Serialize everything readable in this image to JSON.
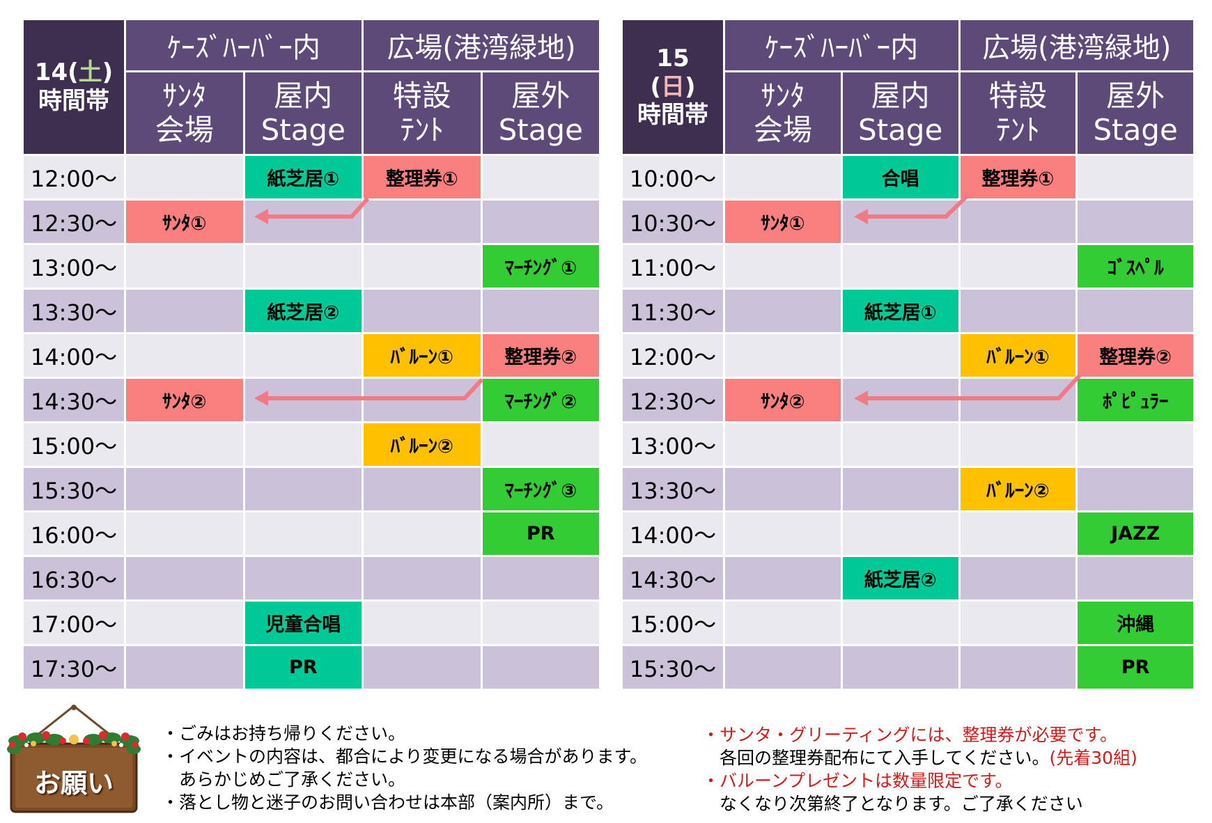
{
  "saturday": {
    "day_num": "14",
    "day_mark": "土",
    "label": "時間帯",
    "group1": "ｹｰｽﾞﾊｰﾊﾞｰ内",
    "group2": "広場(港湾緑地)",
    "columns": [
      "ｻﾝﾀ\n会場",
      "屋内\nStage",
      "特設\nﾃﾝﾄ",
      "屋外\nStage"
    ],
    "rows": [
      {
        "time": "12:00～",
        "c1": "",
        "c2": "紙芝居①",
        "c3": "整理券①",
        "c4": ""
      },
      {
        "time": "12:30～",
        "c1": "ｻﾝﾀ①",
        "c2": "",
        "c3": "",
        "c4": ""
      },
      {
        "time": "13:00～",
        "c1": "",
        "c2": "",
        "c3": "",
        "c4": "ﾏｰﾁﾝｸﾞ①"
      },
      {
        "time": "13:30～",
        "c1": "",
        "c2": "紙芝居②",
        "c3": "",
        "c4": ""
      },
      {
        "time": "14:00～",
        "c1": "",
        "c2": "",
        "c3": "ﾊﾞﾙｰﾝ①",
        "c4": "整理券②"
      },
      {
        "time": "14:30～",
        "c1": "ｻﾝﾀ②",
        "c2": "",
        "c3": "",
        "c4": "ﾏｰﾁﾝｸﾞ②"
      },
      {
        "time": "15:00～",
        "c1": "",
        "c2": "",
        "c3": "ﾊﾞﾙｰﾝ②",
        "c4": ""
      },
      {
        "time": "15:30～",
        "c1": "",
        "c2": "",
        "c3": "",
        "c4": "ﾏｰﾁﾝｸﾞ③"
      },
      {
        "time": "16:00～",
        "c1": "",
        "c2": "",
        "c3": "",
        "c4": "PR"
      },
      {
        "time": "16:30～",
        "c1": "",
        "c2": "",
        "c3": "",
        "c4": ""
      },
      {
        "time": "17:00～",
        "c1": "",
        "c2": "児童合唱",
        "c3": "",
        "c4": ""
      },
      {
        "time": "17:30～",
        "c1": "",
        "c2": "PR",
        "c3": "",
        "c4": ""
      }
    ]
  },
  "sunday": {
    "day_num": "15",
    "day_mark": "日",
    "label": "時間帯",
    "group1": "ｹｰｽﾞﾊｰﾊﾞｰ内",
    "group2": "広場(港湾緑地)",
    "columns": [
      "ｻﾝﾀ\n会場",
      "屋内\nStage",
      "特設\nﾃﾝﾄ",
      "屋外\nStage"
    ],
    "rows": [
      {
        "time": "10:00～",
        "c1": "",
        "c2": "合唱",
        "c3": "整理券①",
        "c4": ""
      },
      {
        "time": "10:30～",
        "c1": "ｻﾝﾀ①",
        "c2": "",
        "c3": "",
        "c4": ""
      },
      {
        "time": "11:00～",
        "c1": "",
        "c2": "",
        "c3": "",
        "c4": "ｺﾞｽﾍﾟﾙ"
      },
      {
        "time": "11:30～",
        "c1": "",
        "c2": "紙芝居①",
        "c3": "",
        "c4": ""
      },
      {
        "time": "12:00～",
        "c1": "",
        "c2": "",
        "c3": "ﾊﾞﾙｰﾝ①",
        "c4": "整理券②"
      },
      {
        "time": "12:30～",
        "c1": "ｻﾝﾀ②",
        "c2": "",
        "c3": "",
        "c4": "ﾎﾟﾋﾟｭﾗｰ"
      },
      {
        "time": "13:00～",
        "c1": "",
        "c2": "",
        "c3": "",
        "c4": ""
      },
      {
        "time": "13:30～",
        "c1": "",
        "c2": "",
        "c3": "ﾊﾞﾙｰﾝ②",
        "c4": ""
      },
      {
        "time": "14:00～",
        "c1": "",
        "c2": "",
        "c3": "",
        "c4": "JAZZ"
      },
      {
        "time": "14:30～",
        "c1": "",
        "c2": "紙芝居②",
        "c3": "",
        "c4": ""
      },
      {
        "time": "15:00～",
        "c1": "",
        "c2": "",
        "c3": "",
        "c4": "沖縄"
      },
      {
        "time": "15:30～",
        "c1": "",
        "c2": "",
        "c3": "",
        "c4": "PR"
      }
    ]
  },
  "sign": {
    "label": "お願い"
  },
  "notes_left": [
    "・ごみはお持ち帰りください。",
    "・イベントの内容は、都合により変更になる場合があります。",
    "　あらかじめご了承ください。",
    "・落とし物と迷子のお問い合わせは本部（案内所）まで。"
  ],
  "notes_right": {
    "line1": "・サンタ・グリーティングには、整理券が必要です。",
    "line2_black": "　各回の整理券配布にて入手してください。",
    "line2_red": "(先着30組)",
    "line3": "・バルーンプレゼントは数量限定です。",
    "line4": "　なくなり次第終了となります。ご了承ください"
  },
  "colors": {
    "header": "#5e4a78",
    "day_header": "#3e2f51",
    "row_light": "#ebe9f0",
    "row_dark": "#cbc2d9",
    "teal": "#00c896",
    "pink": "#fa8080",
    "green": "#34cc34",
    "yellow": "#ffc000",
    "arrow": "#f07a86",
    "note_red": "#d11a1a"
  }
}
